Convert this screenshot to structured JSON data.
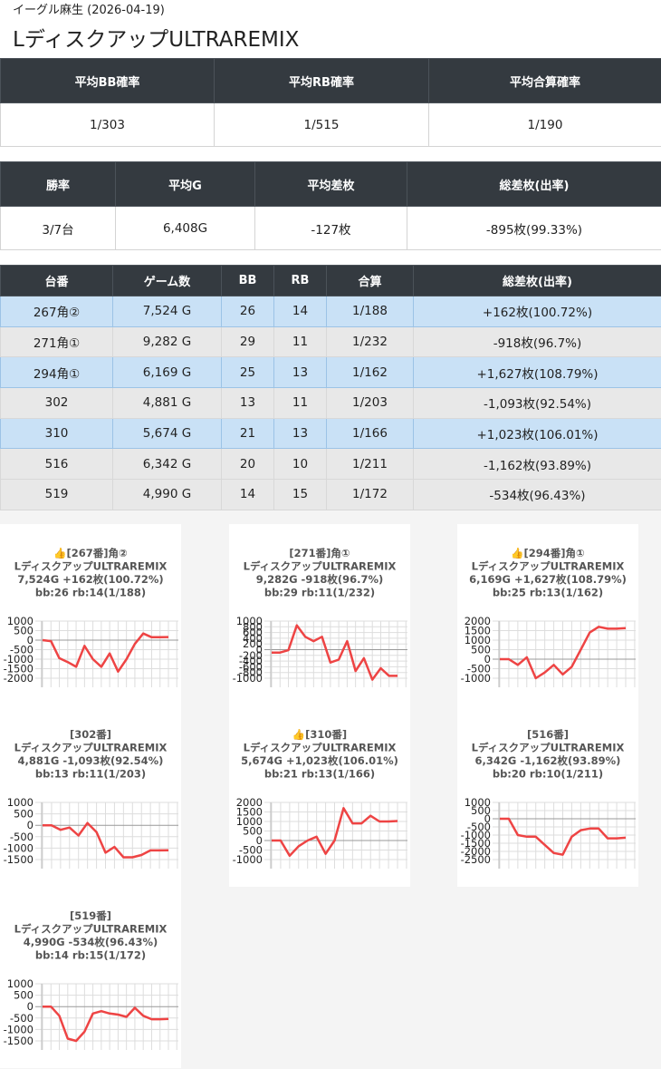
{
  "header": {
    "store": "イーグル麻生 (2026-04-19)",
    "title": "LディスクアップULTRAREMIX"
  },
  "summary1": {
    "headers": [
      "平均BB確率",
      "平均RB確率",
      "平均合算確率"
    ],
    "row": [
      "1/303",
      "1/515",
      "1/190"
    ]
  },
  "summary2": {
    "headers": [
      "勝率",
      "平均G",
      "平均差枚",
      "総差枚(出率)"
    ],
    "row": [
      "3/7台",
      "6,408G",
      "-127枚",
      "-895枚(99.33%)"
    ]
  },
  "machines": {
    "headers": [
      "台番",
      "ゲーム数",
      "BB",
      "RB",
      "合算",
      "総差枚(出率)"
    ],
    "highlight_color": "#c9e1f6",
    "plain_color": "#e8e8e8",
    "rows": [
      [
        "267角②",
        "7,524 G",
        "26",
        "14",
        "1/188",
        "+162枚(100.72%)"
      ],
      [
        "271角①",
        "9,282 G",
        "29",
        "11",
        "1/232",
        "-918枚(96.7%)"
      ],
      [
        "294角①",
        "6,169 G",
        "25",
        "13",
        "1/162",
        "+1,627枚(108.79%)"
      ],
      [
        "302",
        "4,881 G",
        "13",
        "11",
        "1/203",
        "-1,093枚(92.54%)"
      ],
      [
        "310",
        "5,674 G",
        "21",
        "13",
        "1/166",
        "+1,023枚(106.01%)"
      ],
      [
        "516",
        "6,342 G",
        "20",
        "10",
        "1/211",
        "-1,162枚(93.89%)"
      ],
      [
        "519",
        "4,990 G",
        "14",
        "15",
        "1/172",
        "-534枚(96.43%)"
      ]
    ]
  },
  "chart_data": [
    {
      "type": "line",
      "title_lines": [
        "👍[267番]角②",
        "LディスクアップULTRAREMIX",
        "7,524G +162枚(100.72%)",
        "bb:26 rb:14(1/188)"
      ],
      "color": "#ee4444",
      "grid": true,
      "ylim": [
        -2000,
        1000
      ],
      "yticks": [
        1000,
        500,
        0,
        -500,
        -1000,
        -1500,
        -2000
      ],
      "values": [
        0,
        -50,
        -950,
        -1150,
        -1400,
        -300,
        -1000,
        -1400,
        -700,
        -1650,
        -1000,
        -200,
        350,
        150,
        150,
        162
      ]
    },
    {
      "type": "line",
      "title_lines": [
        "[271番]角①",
        "LディスクアップULTRAREMIX",
        "9,282G -918枚(96.7%)",
        "bb:29 rb:11(1/232)"
      ],
      "color": "#ee4444",
      "grid": true,
      "ylim": [
        -1000,
        1000
      ],
      "yticks": [
        1000,
        800,
        600,
        400,
        200,
        0,
        -200,
        -400,
        -600,
        -800,
        -1000
      ],
      "values": [
        -100,
        -100,
        -20,
        850,
        450,
        300,
        450,
        -450,
        -350,
        300,
        -750,
        -300,
        -1050,
        -650,
        -918,
        -918
      ]
    },
    {
      "type": "line",
      "title_lines": [
        "👍[294番]角①",
        "LディスクアップULTRAREMIX",
        "6,169G +1,627枚(108.79%)",
        "bb:25 rb:13(1/162)"
      ],
      "color": "#ee4444",
      "grid": true,
      "ylim": [
        -1000,
        2000
      ],
      "yticks": [
        2000,
        1500,
        1000,
        500,
        0,
        -500,
        -1000
      ],
      "values": [
        0,
        0,
        -300,
        100,
        -1000,
        -700,
        -300,
        -800,
        -400,
        500,
        1400,
        1700,
        1600,
        1600,
        1627
      ]
    },
    {
      "type": "line",
      "title_lines": [
        "[302番]",
        "LディスクアップULTRAREMIX",
        "4,881G -1,093枚(92.54%)",
        "bb:13 rb:11(1/203)"
      ],
      "color": "#ee4444",
      "grid": true,
      "ylim": [
        -1500,
        1000
      ],
      "yticks": [
        1000,
        500,
        0,
        -500,
        -1000,
        -1500
      ],
      "values": [
        0,
        0,
        -200,
        -100,
        -450,
        100,
        -300,
        -1200,
        -950,
        -1400,
        -1400,
        -1300,
        -1100,
        -1100,
        -1093
      ]
    },
    {
      "type": "line",
      "title_lines": [
        "👍[310番]",
        "LディスクアップULTRAREMIX",
        "5,674G +1,023枚(106.01%)",
        "bb:21 rb:13(1/166)"
      ],
      "color": "#ee4444",
      "grid": true,
      "ylim": [
        -1000,
        2000
      ],
      "yticks": [
        2000,
        1500,
        1000,
        500,
        0,
        -500,
        -1000
      ],
      "values": [
        0,
        0,
        -800,
        -300,
        0,
        200,
        -700,
        0,
        1700,
        900,
        900,
        1300,
        1000,
        1000,
        1023
      ]
    },
    {
      "type": "line",
      "title_lines": [
        "[516番]",
        "LディスクアップULTRAREMIX",
        "6,342G -1,162枚(93.89%)",
        "bb:20 rb:10(1/211)"
      ],
      "color": "#ee4444",
      "grid": true,
      "ylim": [
        -2500,
        1000
      ],
      "yticks": [
        1000,
        500,
        0,
        -500,
        -1000,
        -1500,
        -2000,
        -2500
      ],
      "values": [
        0,
        0,
        -1000,
        -1100,
        -1100,
        -1600,
        -2100,
        -2200,
        -1100,
        -700,
        -600,
        -600,
        -1200,
        -1200,
        -1162
      ]
    },
    {
      "type": "line",
      "title_lines": [
        "[519番]",
        "LディスクアップULTRAREMIX",
        "4,990G -534枚(96.43%)",
        "bb:14 rb:15(1/172)"
      ],
      "color": "#ee4444",
      "grid": true,
      "ylim": [
        -1500,
        1000
      ],
      "yticks": [
        1000,
        500,
        0,
        -500,
        -1000,
        -1500
      ],
      "values": [
        0,
        0,
        -400,
        -1400,
        -1500,
        -1100,
        -300,
        -200,
        -300,
        -350,
        -450,
        -50,
        -400,
        -550,
        -550,
        -534
      ]
    }
  ]
}
